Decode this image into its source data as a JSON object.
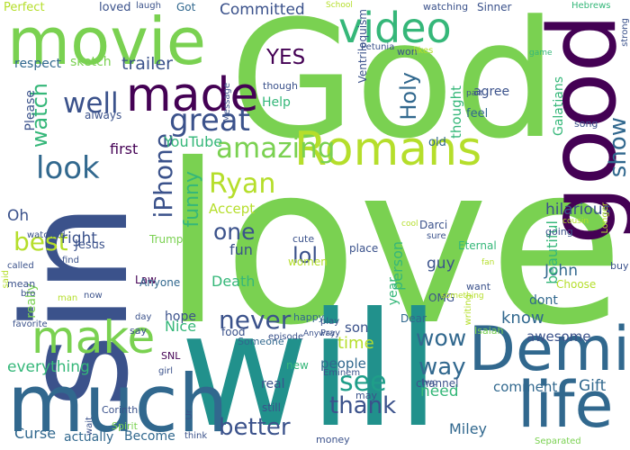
{
  "words": [
    {
      "text": "God",
      "color": "#7ad151"
    },
    {
      "text": "love",
      "color": "#7ad151"
    },
    {
      "text": "will",
      "color": "#21918c"
    },
    {
      "text": "sin",
      "color": "#3b528b"
    },
    {
      "text": "movie",
      "color": "#7ad151"
    },
    {
      "text": "good",
      "color": "#440154"
    },
    {
      "text": "much",
      "color": "#31688e"
    },
    {
      "text": "Romans",
      "color": "#b5de2b"
    },
    {
      "text": "Demi",
      "color": "#31688e"
    },
    {
      "text": "life",
      "color": "#31688e"
    },
    {
      "text": "video",
      "color": "#35b779"
    },
    {
      "text": "made",
      "color": "#440154"
    },
    {
      "text": "make",
      "color": "#7ad151"
    },
    {
      "text": "great",
      "color": "#3b528b"
    },
    {
      "text": "look",
      "color": "#31688e"
    },
    {
      "text": "amazing",
      "color": "#7ad151"
    },
    {
      "text": "Ryan",
      "color": "#b5de2b"
    },
    {
      "text": "iPhone",
      "color": "#3b528b"
    },
    {
      "text": "funny",
      "color": "#35b779"
    },
    {
      "text": "well",
      "color": "#3b528b"
    },
    {
      "text": "best",
      "color": "#b5de2b"
    },
    {
      "text": "show",
      "color": "#31688e"
    },
    {
      "text": "watch",
      "color": "#35b779"
    },
    {
      "text": "never",
      "color": "#3b528b"
    },
    {
      "text": "see",
      "color": "#1f9e89"
    },
    {
      "text": "wow",
      "color": "#31688e"
    },
    {
      "text": "better",
      "color": "#3b528b"
    },
    {
      "text": "thank",
      "color": "#3b528b"
    },
    {
      "text": "way",
      "color": "#31688e"
    },
    {
      "text": "one",
      "color": "#3b528b"
    },
    {
      "text": "lol",
      "color": "#3b528b"
    },
    {
      "text": "Holy",
      "color": "#31688e"
    },
    {
      "text": "YES",
      "color": "#440154"
    },
    {
      "text": "trailer",
      "color": "#3b528b"
    },
    {
      "text": "Committed",
      "color": "#3b528b"
    },
    {
      "text": "YouTube",
      "color": "#35b779"
    },
    {
      "text": "hilarious",
      "color": "#3b528b"
    },
    {
      "text": "know",
      "color": "#31688e"
    },
    {
      "text": "John",
      "color": "#31688e"
    },
    {
      "text": "beautiful",
      "color": "#35b779"
    },
    {
      "text": "time",
      "color": "#b5de2b"
    },
    {
      "text": "need",
      "color": "#35b779"
    },
    {
      "text": "comment",
      "color": "#31688e"
    },
    {
      "text": "Gift",
      "color": "#31688e"
    },
    {
      "text": "Miley",
      "color": "#31688e"
    },
    {
      "text": "guy",
      "color": "#3b528b"
    },
    {
      "text": "person",
      "color": "#35b779"
    },
    {
      "text": "Death",
      "color": "#35b779"
    },
    {
      "text": "fun",
      "color": "#3b528b"
    },
    {
      "text": "everything",
      "color": "#35b779"
    },
    {
      "text": "right",
      "color": "#3b528b"
    },
    {
      "text": "Oh",
      "color": "#3b528b"
    },
    {
      "text": "really",
      "color": "#7ad151"
    },
    {
      "text": "first",
      "color": "#440154"
    },
    {
      "text": "Accept",
      "color": "#b5de2b"
    },
    {
      "text": "people",
      "color": "#31688e"
    },
    {
      "text": "awesome",
      "color": "#3b528b"
    },
    {
      "text": "thought",
      "color": "#35b779"
    },
    {
      "text": "Galatians",
      "color": "#35b779"
    },
    {
      "text": "Help",
      "color": "#35b779"
    },
    {
      "text": "hope",
      "color": "#3b528b"
    },
    {
      "text": "Nice",
      "color": "#35b779"
    },
    {
      "text": "son",
      "color": "#3b528b"
    },
    {
      "text": "dont",
      "color": "#31688e"
    },
    {
      "text": "year",
      "color": "#35b779"
    },
    {
      "text": "old",
      "color": "#31688e"
    },
    {
      "text": "agree",
      "color": "#3b528b"
    },
    {
      "text": "feel",
      "color": "#31688e"
    },
    {
      "text": "Curse",
      "color": "#31688e"
    },
    {
      "text": "Become",
      "color": "#31688e"
    },
    {
      "text": "actually",
      "color": "#31688e"
    },
    {
      "text": "real",
      "color": "#3b528b"
    },
    {
      "text": "Jesus",
      "color": "#3b528b"
    },
    {
      "text": "Ventriloquism",
      "color": "#3b528b"
    },
    {
      "text": "respect",
      "color": "#31688e"
    },
    {
      "text": "sketch",
      "color": "#7ad151"
    },
    {
      "text": "Perfect",
      "color": "#b5de2b"
    },
    {
      "text": "loved",
      "color": "#3b528b"
    },
    {
      "text": "Got",
      "color": "#31688e"
    },
    {
      "text": "laugh",
      "color": "#3b528b"
    },
    {
      "text": "Sinner",
      "color": "#3b528b"
    },
    {
      "text": "watching",
      "color": "#3b528b"
    },
    {
      "text": "Hebrews",
      "color": "#35b779"
    },
    {
      "text": "strong",
      "color": "#3b528b"
    },
    {
      "text": "Please",
      "color": "#3b528b"
    },
    {
      "text": "always",
      "color": "#3b528b"
    },
    {
      "text": "Law",
      "color": "#440154"
    },
    {
      "text": "Trump",
      "color": "#7ad151"
    },
    {
      "text": "cute",
      "color": "#3b528b"
    },
    {
      "text": "women",
      "color": "#b5de2b"
    },
    {
      "text": "place",
      "color": "#3b528b"
    },
    {
      "text": "Darci",
      "color": "#3b528b"
    },
    {
      "text": "Eternal",
      "color": "#35b779"
    },
    {
      "text": "OMG",
      "color": "#3b528b"
    },
    {
      "text": "going",
      "color": "#3b528b"
    },
    {
      "text": "want",
      "color": "#3b528b"
    },
    {
      "text": "Choose",
      "color": "#b5de2b"
    },
    {
      "text": "buy",
      "color": "#3b528b"
    },
    {
      "text": "say",
      "color": "#3b528b"
    },
    {
      "text": "Anyone",
      "color": "#31688e"
    },
    {
      "text": "food",
      "color": "#3b528b"
    },
    {
      "text": "happy",
      "color": "#31688e"
    },
    {
      "text": "SNL",
      "color": "#440154"
    },
    {
      "text": "Someone",
      "color": "#31688e"
    },
    {
      "text": "Dear",
      "color": "#31688e"
    },
    {
      "text": "new",
      "color": "#35b779"
    },
    {
      "text": "still",
      "color": "#3b528b"
    },
    {
      "text": "two",
      "color": "#3b528b"
    },
    {
      "text": "may",
      "color": "#3b528b"
    },
    {
      "text": "money",
      "color": "#3b528b"
    },
    {
      "text": "Separated",
      "color": "#7ad151"
    },
    {
      "text": "Corinth",
      "color": "#3b528b"
    },
    {
      "text": "Spirit",
      "color": "#7ad151"
    },
    {
      "text": "channel",
      "color": "#3b528b"
    },
    {
      "text": "Eminem",
      "color": "#3b528b"
    },
    {
      "text": "Isaiah",
      "color": "#7ad151"
    },
    {
      "text": "writing",
      "color": "#b5de2b"
    },
    {
      "text": "favorite",
      "color": "#3b528b"
    },
    {
      "text": "mean",
      "color": "#3b528b"
    },
    {
      "text": "man",
      "color": "#b5de2b"
    },
    {
      "text": "watched",
      "color": "#3b528b"
    },
    {
      "text": "called",
      "color": "#3b528b"
    },
    {
      "text": "said",
      "color": "#b5de2b"
    },
    {
      "text": "find",
      "color": "#3b528b"
    },
    {
      "text": "bro",
      "color": "#3b528b"
    },
    {
      "text": "day",
      "color": "#3b528b"
    },
    {
      "text": "now",
      "color": "#3b528b"
    },
    {
      "text": "girl",
      "color": "#3b528b"
    },
    {
      "text": "Ur",
      "color": "#3b528b"
    },
    {
      "text": "think",
      "color": "#3b528b"
    },
    {
      "text": "wait",
      "color": "#3b528b"
    },
    {
      "text": "though",
      "color": "#3b528b"
    },
    {
      "text": "Message",
      "color": "#3b528b"
    },
    {
      "text": "Petunia",
      "color": "#3b528b"
    },
    {
      "text": "won",
      "color": "#3b528b"
    },
    {
      "text": "likes",
      "color": "#b5de2b"
    },
    {
      "text": "School",
      "color": "#b5de2b"
    },
    {
      "text": "game",
      "color": "#35b779"
    },
    {
      "text": "part",
      "color": "#3b528b"
    },
    {
      "text": "song",
      "color": "#3b528b"
    },
    {
      "text": "Longer",
      "color": "#b5de2b"
    },
    {
      "text": "cool",
      "color": "#b5de2b"
    },
    {
      "text": "sure",
      "color": "#3b528b"
    },
    {
      "text": "cousin",
      "color": "#b5de2b"
    },
    {
      "text": "fan",
      "color": "#b5de2b"
    },
    {
      "text": "something",
      "color": "#b5de2b"
    },
    {
      "text": "play",
      "color": "#3b528b"
    },
    {
      "text": "Pray",
      "color": "#3b528b"
    },
    {
      "text": "Anyway",
      "color": "#3b528b"
    },
    {
      "text": "episode",
      "color": "#3b528b"
    }
  ]
}
